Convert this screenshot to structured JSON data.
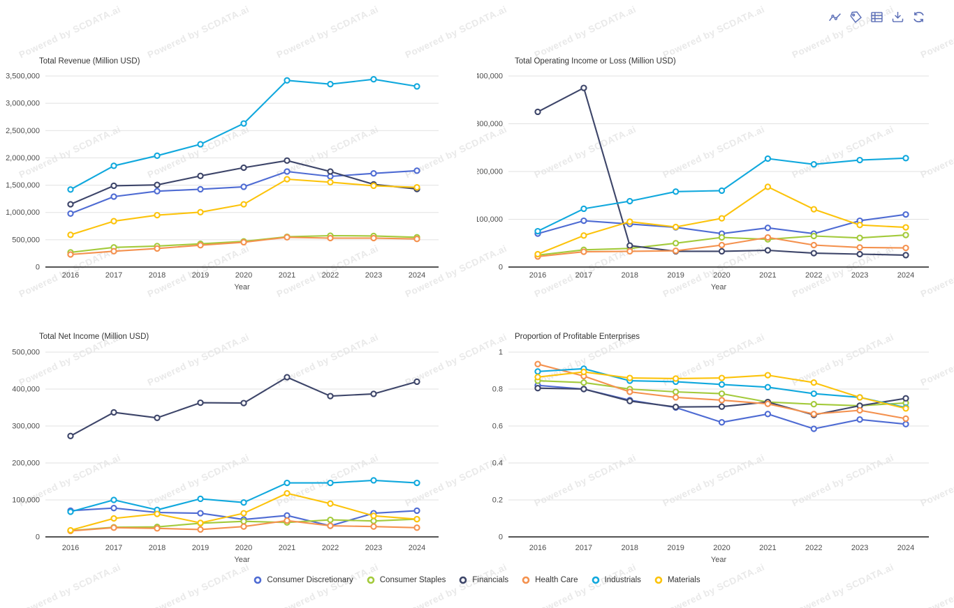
{
  "page": {
    "background": "#ffffff"
  },
  "watermark": {
    "text": "Powered by SCDATA.ai",
    "color": "#e9e9e9"
  },
  "toolbar": {
    "icon_color": "#5c6fb7",
    "icons": [
      "line-chart",
      "tag",
      "data-table",
      "download",
      "refresh"
    ]
  },
  "legend": {
    "items": [
      {
        "label": "Consumer Discretionary",
        "color": "#4e6bd3"
      },
      {
        "label": "Consumer Staples",
        "color": "#a3ca3b"
      },
      {
        "label": "Financials",
        "color": "#3d4569"
      },
      {
        "label": "Health Care",
        "color": "#f4914e"
      },
      {
        "label": "Industrials",
        "color": "#10a8dd"
      },
      {
        "label": "Materials",
        "color": "#fcc30b"
      }
    ]
  },
  "chart_data": [
    {
      "type": "line",
      "title": "Total Revenue (Million USD)",
      "xlabel": "Year",
      "x": [
        2016,
        2017,
        2018,
        2019,
        2020,
        2021,
        2022,
        2023,
        2024
      ],
      "ylim": [
        0,
        3500000
      ],
      "ytick_step": 500000,
      "grid": true,
      "legend_position": "shared-bottom",
      "series": [
        {
          "name": "Consumer Discretionary",
          "values": [
            980000,
            1290000,
            1390000,
            1425000,
            1470000,
            1750000,
            1660000,
            1715000,
            1765000
          ]
        },
        {
          "name": "Consumer Staples",
          "values": [
            270000,
            360000,
            385000,
            425000,
            470000,
            555000,
            575000,
            570000,
            545000
          ]
        },
        {
          "name": "Financials",
          "values": [
            1150000,
            1490000,
            1505000,
            1670000,
            1820000,
            1950000,
            1750000,
            1515000,
            1430000
          ]
        },
        {
          "name": "Health Care",
          "values": [
            230000,
            290000,
            340000,
            400000,
            455000,
            545000,
            530000,
            530000,
            515000
          ]
        },
        {
          "name": "Industrials",
          "values": [
            1420000,
            1855000,
            2040000,
            2250000,
            2630000,
            3420000,
            3350000,
            3440000,
            3310000
          ]
        },
        {
          "name": "Materials",
          "values": [
            590000,
            840000,
            950000,
            1005000,
            1150000,
            1610000,
            1555000,
            1490000,
            1460000
          ]
        }
      ]
    },
    {
      "type": "line",
      "title": "Total Operating Income or Loss (Million USD)",
      "xlabel": "Year",
      "x": [
        2016,
        2017,
        2018,
        2019,
        2020,
        2021,
        2022,
        2023,
        2024
      ],
      "ylim": [
        0,
        400000
      ],
      "ytick_step": 100000,
      "grid": true,
      "legend_position": "shared-bottom",
      "series": [
        {
          "name": "Consumer Discretionary",
          "values": [
            70000,
            97000,
            90000,
            83000,
            70000,
            82000,
            70000,
            97000,
            110000
          ]
        },
        {
          "name": "Consumer Staples",
          "values": [
            25000,
            36000,
            39000,
            50000,
            62000,
            58000,
            65000,
            61000,
            67000
          ]
        },
        {
          "name": "Financials",
          "values": [
            325000,
            375000,
            45000,
            33000,
            33000,
            35000,
            29000,
            27000,
            25000
          ]
        },
        {
          "name": "Health Care",
          "values": [
            22000,
            32000,
            33000,
            34000,
            46000,
            62000,
            46000,
            41000,
            40000
          ]
        },
        {
          "name": "Industrials",
          "values": [
            75000,
            122000,
            138000,
            158000,
            160000,
            227000,
            215000,
            224000,
            228000
          ]
        },
        {
          "name": "Materials",
          "values": [
            27000,
            66000,
            95000,
            84000,
            102000,
            168000,
            121000,
            88000,
            83000
          ]
        }
      ]
    },
    {
      "type": "line",
      "title": "Total Net Income (Million USD)",
      "xlabel": "Year",
      "x": [
        2016,
        2017,
        2018,
        2019,
        2020,
        2021,
        2022,
        2023,
        2024
      ],
      "ylim": [
        0,
        500000
      ],
      "ytick_step": 100000,
      "grid": true,
      "legend_position": "shared-bottom",
      "series": [
        {
          "name": "Consumer Discretionary",
          "values": [
            71000,
            78000,
            66000,
            64000,
            47000,
            58000,
            30000,
            64000,
            71000
          ]
        },
        {
          "name": "Consumer Staples",
          "values": [
            17000,
            26000,
            27000,
            37000,
            42000,
            39000,
            46000,
            43000,
            48000
          ]
        },
        {
          "name": "Financials",
          "values": [
            273000,
            337000,
            322000,
            363000,
            362000,
            432000,
            381000,
            387000,
            420000
          ]
        },
        {
          "name": "Health Care",
          "values": [
            16000,
            25000,
            23000,
            20000,
            28000,
            44000,
            30000,
            28000,
            25000
          ]
        },
        {
          "name": "Industrials",
          "values": [
            68000,
            100000,
            73000,
            103000,
            93000,
            146000,
            146000,
            153000,
            146000
          ]
        },
        {
          "name": "Materials",
          "values": [
            18000,
            50000,
            62000,
            38000,
            64000,
            118000,
            90000,
            57000,
            48000
          ]
        }
      ]
    },
    {
      "type": "line",
      "title": "Proportion of Profitable Enterprises",
      "xlabel": "Year",
      "x": [
        2016,
        2017,
        2018,
        2019,
        2020,
        2021,
        2022,
        2023,
        2024
      ],
      "ylim": [
        0,
        1
      ],
      "ytick_step": 0.2,
      "grid": true,
      "legend_position": "shared-bottom",
      "series": [
        {
          "name": "Consumer Discretionary",
          "values": [
            0.82,
            0.8,
            0.74,
            0.7,
            0.62,
            0.665,
            0.585,
            0.635,
            0.61
          ]
        },
        {
          "name": "Consumer Staples",
          "values": [
            0.845,
            0.835,
            0.8,
            0.785,
            0.775,
            0.73,
            0.718,
            0.71,
            0.725
          ]
        },
        {
          "name": "Financials",
          "values": [
            0.805,
            0.8,
            0.735,
            0.703,
            0.705,
            0.73,
            0.66,
            0.71,
            0.75
          ]
        },
        {
          "name": "Health Care",
          "values": [
            0.935,
            0.87,
            0.785,
            0.755,
            0.74,
            0.72,
            0.665,
            0.685,
            0.64
          ]
        },
        {
          "name": "Industrials",
          "values": [
            0.895,
            0.91,
            0.845,
            0.84,
            0.825,
            0.81,
            0.775,
            0.755,
            0.7
          ]
        },
        {
          "name": "Materials",
          "values": [
            0.865,
            0.893,
            0.86,
            0.857,
            0.86,
            0.875,
            0.835,
            0.755,
            0.695
          ]
        }
      ]
    }
  ]
}
